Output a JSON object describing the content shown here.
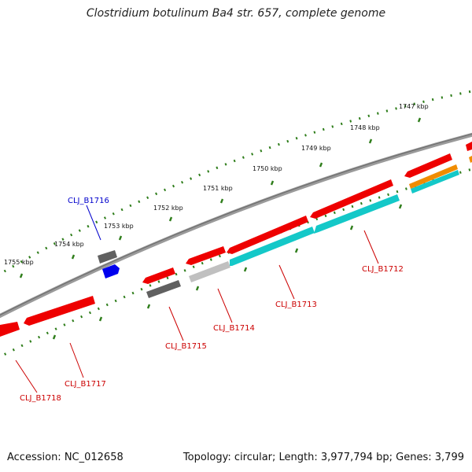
{
  "title": "Clostridium botulinum Ba4 str. 657, complete genome",
  "accession": "Accession: NC_012658",
  "summary": "Topology: circular; Length: 3,977,794 bp; Genes: 3,799",
  "colors": {
    "backbone": "#808080",
    "tick": "#2e7d1a",
    "red_gene": "#ee0000",
    "cyan_gene": "#14c8c8",
    "dark_gray_gene": "#606060",
    "light_gray_gene": "#c0c0c0",
    "blue_gene": "#0000ee",
    "orange_gene": "#f08c00",
    "label_red": "#cc0000",
    "label_blue": "#0000cc"
  },
  "ticks": [
    {
      "label": "1747 kbp"
    },
    {
      "label": "1748 kbp"
    },
    {
      "label": "1749 kbp"
    },
    {
      "label": "1750 kbp"
    },
    {
      "label": "1751 kbp"
    },
    {
      "label": "1752 kbp"
    },
    {
      "label": "1753 kbp"
    },
    {
      "label": "1754 kbp"
    },
    {
      "label": "1755 kbp"
    }
  ],
  "gene_labels": [
    {
      "label": "CLJ_B1712"
    },
    {
      "label": "CLJ_B1713"
    },
    {
      "label": "CLJ_B1714"
    },
    {
      "label": "CLJ_B1715"
    },
    {
      "label": "CLJ_B1716"
    },
    {
      "label": "CLJ_B1717"
    },
    {
      "label": "CLJ_B1718"
    }
  ]
}
